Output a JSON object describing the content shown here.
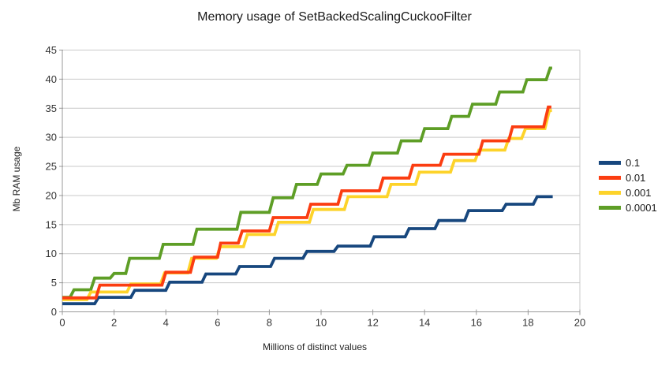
{
  "title": "Memory usage of SetBackedScalingCuckooFilter",
  "chart_data": {
    "type": "line",
    "line_style": "staircase-steps",
    "title": "Memory usage of SetBackedScalingCuckooFilter",
    "xlabel": "Millions of distinct values",
    "ylabel": "Mb RAM usage",
    "xlim": [
      0,
      20
    ],
    "ylim": [
      0,
      45
    ],
    "x_ticks": [
      0,
      2,
      4,
      6,
      8,
      10,
      12,
      14,
      16,
      18,
      20
    ],
    "y_ticks": [
      0,
      5,
      10,
      15,
      20,
      25,
      30,
      35,
      40,
      45
    ],
    "grid": "horizontal",
    "legend_position": "right",
    "draw_order": [
      0,
      3,
      2,
      1
    ],
    "series": [
      {
        "name": "0.1",
        "color": "#17477e",
        "points": [
          [
            0,
            1.4
          ],
          [
            1.25,
            1.4
          ],
          [
            1.4,
            2.5
          ],
          [
            2.65,
            2.5
          ],
          [
            2.8,
            3.7
          ],
          [
            4.0,
            3.7
          ],
          [
            4.15,
            5.1
          ],
          [
            5.4,
            5.1
          ],
          [
            5.55,
            6.5
          ],
          [
            6.7,
            6.5
          ],
          [
            6.85,
            7.8
          ],
          [
            8.05,
            7.8
          ],
          [
            8.2,
            9.2
          ],
          [
            9.3,
            9.2
          ],
          [
            9.45,
            10.4
          ],
          [
            10.5,
            10.4
          ],
          [
            10.65,
            11.3
          ],
          [
            11.9,
            11.3
          ],
          [
            12.05,
            12.9
          ],
          [
            13.25,
            12.9
          ],
          [
            13.4,
            14.3
          ],
          [
            14.4,
            14.3
          ],
          [
            14.55,
            15.7
          ],
          [
            15.55,
            15.7
          ],
          [
            15.7,
            17.4
          ],
          [
            17.0,
            17.4
          ],
          [
            17.15,
            18.5
          ],
          [
            18.2,
            18.5
          ],
          [
            18.35,
            19.8
          ],
          [
            18.95,
            19.8
          ]
        ]
      },
      {
        "name": "0.01",
        "color": "#fb3d11",
        "points": [
          [
            0,
            2.4
          ],
          [
            1.3,
            2.4
          ],
          [
            1.45,
            4.6
          ],
          [
            3.85,
            4.6
          ],
          [
            4.0,
            6.8
          ],
          [
            4.95,
            6.8
          ],
          [
            5.1,
            9.4
          ],
          [
            6.0,
            9.4
          ],
          [
            6.12,
            11.8
          ],
          [
            6.8,
            11.8
          ],
          [
            6.95,
            13.9
          ],
          [
            8.0,
            13.9
          ],
          [
            8.15,
            16.2
          ],
          [
            9.45,
            16.2
          ],
          [
            9.6,
            18.5
          ],
          [
            10.65,
            18.5
          ],
          [
            10.8,
            20.8
          ],
          [
            12.25,
            20.8
          ],
          [
            12.4,
            23.0
          ],
          [
            13.4,
            23.0
          ],
          [
            13.55,
            25.2
          ],
          [
            14.6,
            25.2
          ],
          [
            14.75,
            27.1
          ],
          [
            16.1,
            27.1
          ],
          [
            16.25,
            29.4
          ],
          [
            17.25,
            29.4
          ],
          [
            17.4,
            31.8
          ],
          [
            18.6,
            31.8
          ],
          [
            18.78,
            35.2
          ],
          [
            18.9,
            35.2
          ]
        ]
      },
      {
        "name": "0.001",
        "color": "#fdd32a",
        "points": [
          [
            0,
            2.1
          ],
          [
            0.95,
            2.1
          ],
          [
            1.1,
            3.4
          ],
          [
            2.5,
            3.4
          ],
          [
            2.65,
            4.8
          ],
          [
            3.8,
            4.8
          ],
          [
            3.95,
            6.7
          ],
          [
            4.85,
            6.7
          ],
          [
            5.0,
            9.2
          ],
          [
            5.95,
            9.2
          ],
          [
            6.1,
            11.2
          ],
          [
            7.0,
            11.2
          ],
          [
            7.15,
            13.3
          ],
          [
            8.2,
            13.3
          ],
          [
            8.35,
            15.4
          ],
          [
            9.55,
            15.4
          ],
          [
            9.7,
            17.6
          ],
          [
            10.9,
            17.6
          ],
          [
            11.05,
            19.8
          ],
          [
            12.55,
            19.8
          ],
          [
            12.7,
            21.9
          ],
          [
            13.65,
            21.9
          ],
          [
            13.8,
            24.0
          ],
          [
            15.0,
            24.0
          ],
          [
            15.15,
            26.0
          ],
          [
            15.95,
            26.0
          ],
          [
            16.1,
            27.8
          ],
          [
            17.1,
            27.8
          ],
          [
            17.25,
            29.8
          ],
          [
            17.75,
            29.8
          ],
          [
            17.9,
            31.5
          ],
          [
            18.65,
            31.5
          ],
          [
            18.82,
            34.6
          ],
          [
            18.92,
            34.6
          ]
        ]
      },
      {
        "name": "0.0001",
        "color": "#5e9e26",
        "points": [
          [
            0,
            2.5
          ],
          [
            0.3,
            2.5
          ],
          [
            0.45,
            3.8
          ],
          [
            1.1,
            3.8
          ],
          [
            1.25,
            5.8
          ],
          [
            1.85,
            5.8
          ],
          [
            2.0,
            6.6
          ],
          [
            2.45,
            6.6
          ],
          [
            2.6,
            9.2
          ],
          [
            3.75,
            9.2
          ],
          [
            3.9,
            11.6
          ],
          [
            5.05,
            11.6
          ],
          [
            5.2,
            14.2
          ],
          [
            6.75,
            14.2
          ],
          [
            6.9,
            17.1
          ],
          [
            8.0,
            17.1
          ],
          [
            8.15,
            19.6
          ],
          [
            8.9,
            19.6
          ],
          [
            9.05,
            21.9
          ],
          [
            9.85,
            21.9
          ],
          [
            10.0,
            23.7
          ],
          [
            10.85,
            23.7
          ],
          [
            11.0,
            25.2
          ],
          [
            11.85,
            25.2
          ],
          [
            12.0,
            27.3
          ],
          [
            12.95,
            27.3
          ],
          [
            13.1,
            29.4
          ],
          [
            13.85,
            29.4
          ],
          [
            14.0,
            31.5
          ],
          [
            14.9,
            31.5
          ],
          [
            15.05,
            33.6
          ],
          [
            15.7,
            33.6
          ],
          [
            15.85,
            35.7
          ],
          [
            16.75,
            35.7
          ],
          [
            16.9,
            37.8
          ],
          [
            17.8,
            37.8
          ],
          [
            17.95,
            39.9
          ],
          [
            18.7,
            39.9
          ],
          [
            18.85,
            41.9
          ],
          [
            18.93,
            41.9
          ]
        ]
      }
    ],
    "style": {
      "grid_color": "#c9c9c9",
      "axis_color": "#9a9a9a",
      "tick_label_color": "#333333",
      "line_width": 3.8
    }
  }
}
